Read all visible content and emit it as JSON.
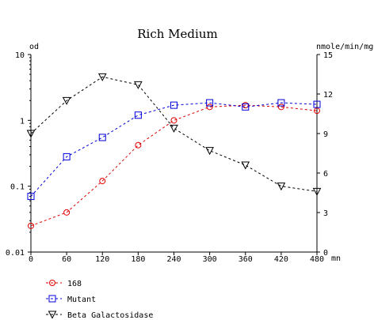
{
  "chart_data": {
    "type": "line",
    "title": "Rich Medium",
    "xlabel": "mn",
    "ylabel_left": "od",
    "ylabel_right": "nmole/min/mg",
    "x": [
      0,
      60,
      120,
      180,
      240,
      300,
      360,
      420,
      480
    ],
    "xlim": [
      0,
      480
    ],
    "x_ticks": [
      "0",
      "60",
      "120",
      "180",
      "240",
      "300",
      "360",
      "420",
      "480"
    ],
    "y_left": {
      "scale": "log",
      "lim": [
        0.01,
        10
      ],
      "ticks": [
        "10",
        "1",
        "0.1",
        "0.01"
      ],
      "tick_values": [
        10,
        1,
        0.1,
        0.01
      ]
    },
    "y_right": {
      "scale": "linear",
      "lim": [
        0,
        15
      ],
      "ticks": [
        "15",
        "12",
        "9",
        "6",
        "3",
        "0"
      ],
      "tick_values": [
        15,
        12,
        9,
        6,
        3,
        0
      ]
    },
    "grid": false,
    "legend_position": "bottom-left",
    "series": [
      {
        "name": "168",
        "axis": "left",
        "marker": "circle",
        "color": "#e00000",
        "values": [
          0.025,
          0.04,
          0.12,
          0.42,
          1.0,
          1.6,
          1.7,
          1.6,
          1.4
        ]
      },
      {
        "name": "Mutant",
        "axis": "left",
        "marker": "square",
        "color": "#0000dd",
        "values": [
          0.07,
          0.28,
          0.55,
          1.2,
          1.7,
          1.85,
          1.6,
          1.85,
          1.75
        ]
      },
      {
        "name": "Beta Galactosidase",
        "axis": "right",
        "marker": "triangle-down",
        "color": "#000000",
        "values": [
          9.0,
          11.5,
          13.3,
          12.7,
          9.4,
          7.7,
          6.6,
          5.0,
          4.6
        ]
      }
    ]
  }
}
